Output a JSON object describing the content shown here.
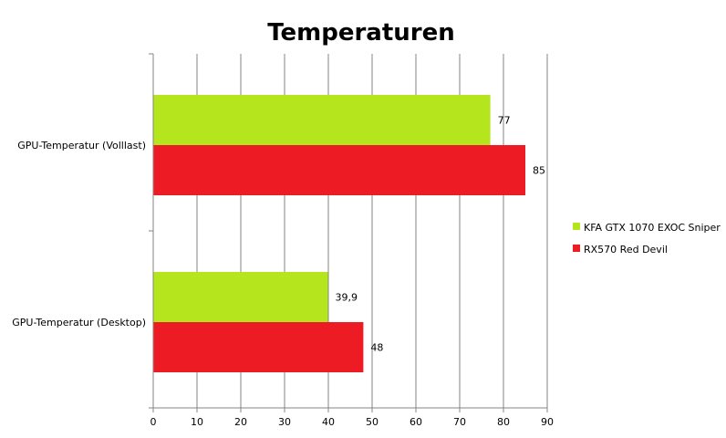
{
  "chart_data": {
    "type": "bar",
    "orientation": "horizontal",
    "title": "Temperaturen",
    "xlabel": "",
    "ylabel": "",
    "xlim": [
      0,
      90
    ],
    "x_ticks": [
      0,
      10,
      20,
      30,
      40,
      50,
      60,
      70,
      80,
      90
    ],
    "grid": "vertical",
    "legend_position": "right",
    "categories": [
      "GPU-Temperatur (Volllast)",
      "GPU-Temperatur (Desktop)"
    ],
    "series": [
      {
        "name": "KFA GTX 1070 EXOC Sniper",
        "color": "#b5e61d",
        "values": [
          77,
          39.9
        ],
        "labels": [
          "77",
          "39,9"
        ]
      },
      {
        "name": "RX570 Red Devil",
        "color": "#ed1c24",
        "values": [
          85,
          48
        ],
        "labels": [
          "85",
          "48"
        ]
      }
    ]
  }
}
